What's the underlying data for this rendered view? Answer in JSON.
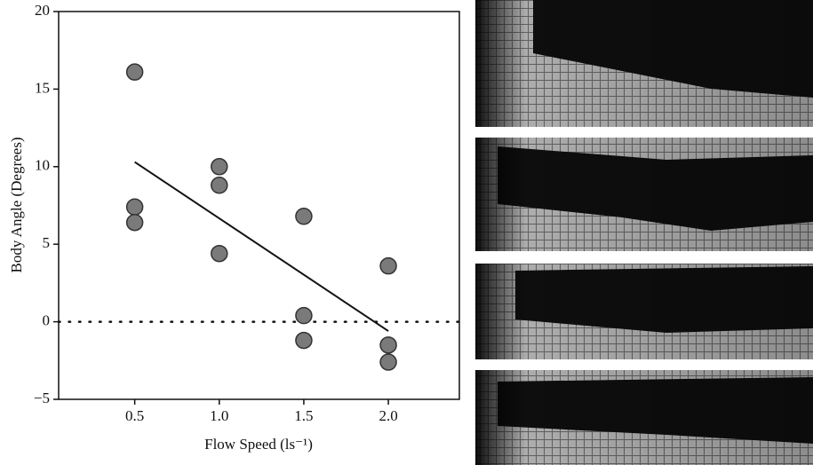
{
  "chart_data": {
    "type": "scatter",
    "x_label": "Flow Speed (ls⁻¹)",
    "y_label": "Body Angle (Degrees)",
    "x": [
      0.5,
      0.5,
      0.5,
      1.0,
      1.0,
      1.0,
      1.5,
      1.5,
      1.5,
      2.0,
      2.0,
      2.0
    ],
    "values": [
      16.1,
      7.4,
      6.4,
      10.0,
      8.8,
      4.4,
      6.8,
      0.4,
      -1.2,
      3.6,
      -1.5,
      -2.6
    ],
    "color": "#7a7a7a",
    "fit_line": {
      "x": [
        0.5,
        2.0
      ],
      "values": [
        10.3,
        -0.6
      ]
    },
    "hline": 0,
    "xlim": [
      0.05,
      2.42
    ],
    "ylim": [
      -5,
      20
    ],
    "xticks": [
      0.5,
      {
        "value": 1.0,
        "label": "1.0"
      },
      1.5,
      {
        "value": 2.0,
        "label": "2.0"
      }
    ],
    "yticks": [
      {
        "value": -5,
        "label": "−5"
      },
      0,
      5,
      10,
      15,
      20
    ],
    "grid": false
  }
}
